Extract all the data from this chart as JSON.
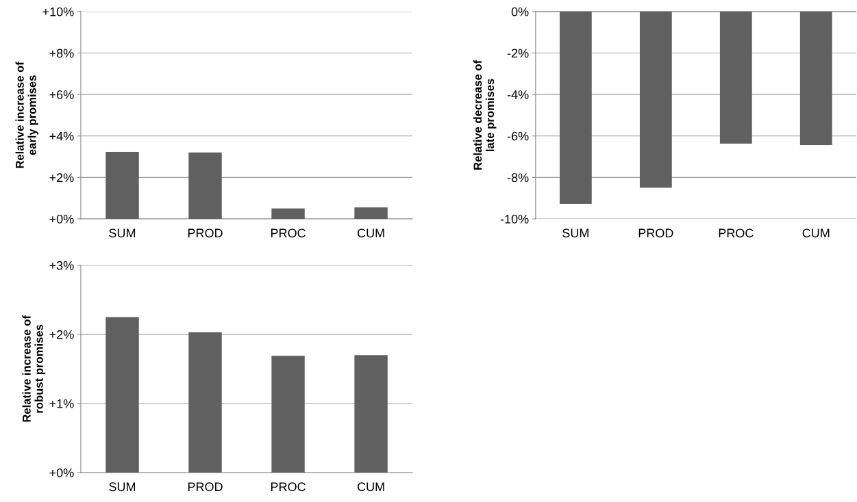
{
  "chart_data": [
    {
      "type": "bar",
      "ylabel": "Relative increase of\nearly promises",
      "categories": [
        "SUM",
        "PROD",
        "PROC",
        "CUM"
      ],
      "values": [
        3.23,
        3.2,
        0.5,
        0.55
      ],
      "color": "#606060",
      "ylim": [
        0,
        10
      ],
      "yticks": [
        {
          "value": 0,
          "label": "+0%"
        },
        {
          "value": 2,
          "label": "+2%"
        },
        {
          "value": 4,
          "label": "+4%"
        },
        {
          "value": 6,
          "label": "+6%"
        },
        {
          "value": 8,
          "label": "+8%"
        },
        {
          "value": 10,
          "label": "+10%"
        }
      ],
      "grid": "y",
      "legend": false
    },
    {
      "type": "bar",
      "ylabel": "Relative decrease of\nlate promises",
      "categories": [
        "SUM",
        "PROD",
        "PROC",
        "CUM"
      ],
      "values": [
        -9.27,
        -8.5,
        -6.37,
        -6.44
      ],
      "color": "#606060",
      "ylim": [
        -10,
        0
      ],
      "yticks": [
        {
          "value": -10,
          "label": "-10%"
        },
        {
          "value": -8,
          "label": "-8%"
        },
        {
          "value": -6,
          "label": "-6%"
        },
        {
          "value": -4,
          "label": "-4%"
        },
        {
          "value": -2,
          "label": "-2%"
        },
        {
          "value": 0,
          "label": "0%"
        }
      ],
      "grid": "y",
      "legend": false
    },
    {
      "type": "bar",
      "ylabel": "Relative increase of\nrobust promises",
      "categories": [
        "SUM",
        "PROD",
        "PROC",
        "CUM"
      ],
      "values": [
        2.25,
        2.03,
        1.69,
        1.7
      ],
      "color": "#606060",
      "ylim": [
        0,
        3
      ],
      "yticks": [
        {
          "value": 0,
          "label": "+0%"
        },
        {
          "value": 1,
          "label": "+1%"
        },
        {
          "value": 2,
          "label": "+2%"
        },
        {
          "value": 3,
          "label": "+3%"
        }
      ],
      "grid": "y",
      "legend": false
    }
  ]
}
